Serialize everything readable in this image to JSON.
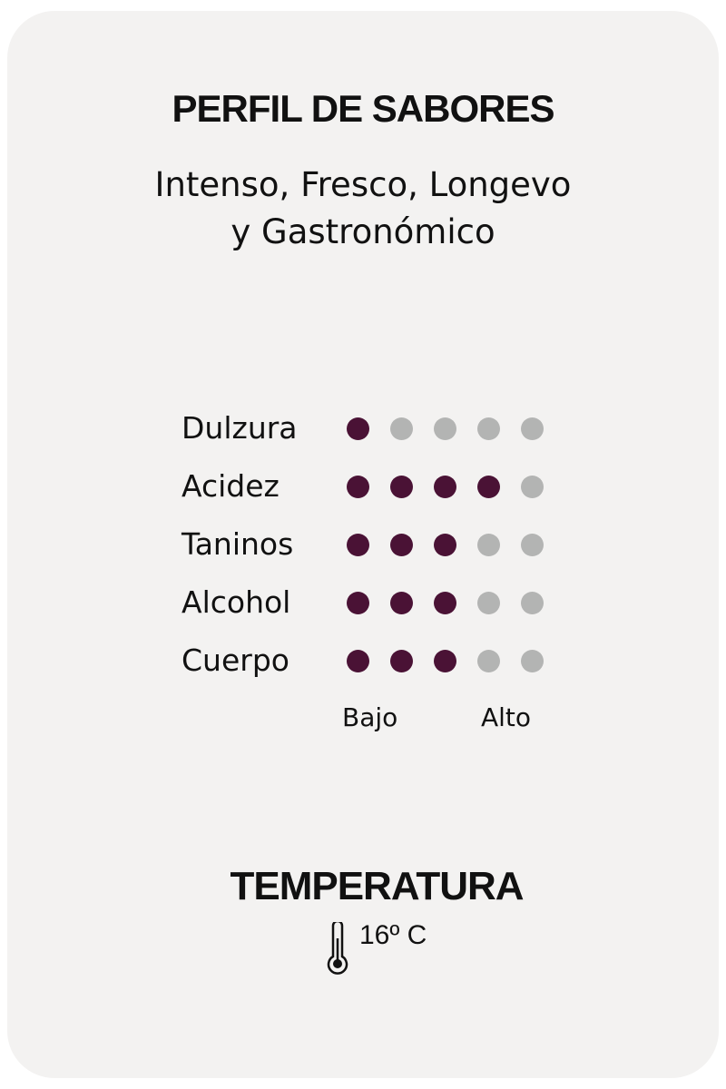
{
  "title": "PERFIL DE SABORES",
  "subtitle_line1": "Intenso, Fresco, Longevo",
  "subtitle_line2": "y Gastronómico",
  "profile": {
    "max": 5,
    "items": [
      {
        "label": "Dulzura",
        "value": 1
      },
      {
        "label": "Acidez",
        "value": 4
      },
      {
        "label": "Taninos",
        "value": 3
      },
      {
        "label": "Alcohol",
        "value": 3
      },
      {
        "label": "Cuerpo",
        "value": 3
      }
    ],
    "scale_low": "Bajo",
    "scale_high": "Alto"
  },
  "temperature": {
    "title": "TEMPERATURA",
    "value": "16º C",
    "icon": "thermometer-icon"
  },
  "colors": {
    "filled": "#4a1235",
    "empty": "#b3b4b3",
    "card": "#f3f2f1"
  }
}
